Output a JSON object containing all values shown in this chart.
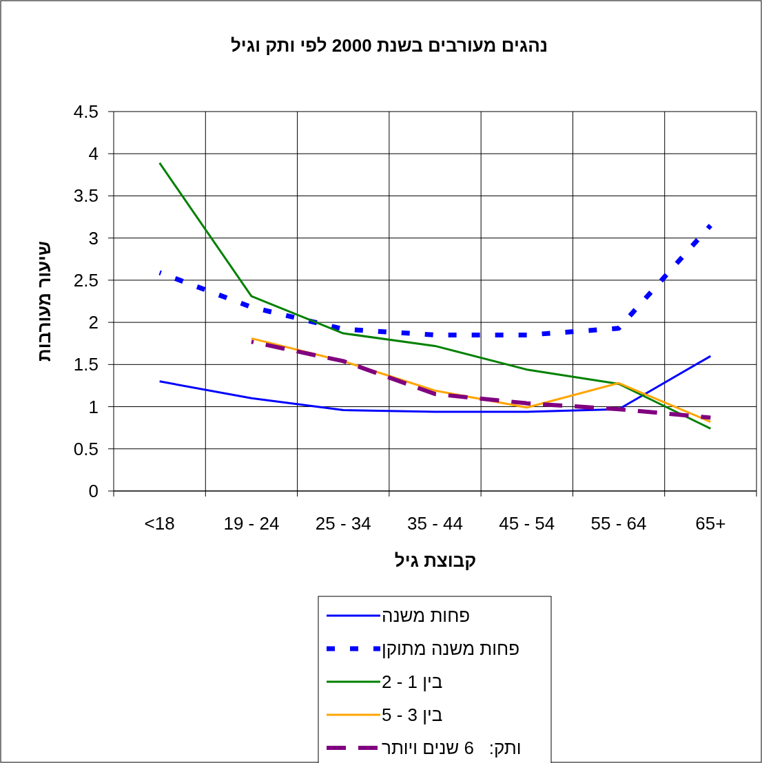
{
  "chart_data": {
    "type": "line",
    "title": "נהגים מעורבים בשנת 2000 לפי ותק וגיל",
    "xlabel": "קבוצת גיל",
    "ylabel": "שיעור מעורבות",
    "categories": [
      "<18",
      "19 - 24",
      "25 - 34",
      "35 - 44",
      "45 - 54",
      "55 - 64",
      "65+"
    ],
    "ylim": [
      0,
      4.5
    ],
    "yticks": [
      0,
      0.5,
      1,
      1.5,
      2,
      2.5,
      3,
      3.5,
      4,
      4.5
    ],
    "grid": true,
    "legend": "bottom",
    "marker": "none",
    "series": [
      {
        "name": "פחות משנה",
        "color": "#0000ff",
        "line_style": "solid",
        "values": [
          1.3,
          1.1,
          0.96,
          0.94,
          0.94,
          0.97,
          1.6
        ]
      },
      {
        "name": "פחות משנה מתוקן",
        "color": "#0000ff",
        "line_style": "dotted",
        "values": [
          2.59,
          2.18,
          1.92,
          1.85,
          1.85,
          1.93,
          3.15
        ]
      },
      {
        "name": "בין 1 - 2",
        "color": "#008000",
        "line_style": "solid",
        "values": [
          3.89,
          2.31,
          1.87,
          1.72,
          1.44,
          1.27,
          0.74
        ]
      },
      {
        "name": "בין 3 - 5",
        "color": "#ffa500",
        "line_style": "solid",
        "values": [
          null,
          1.81,
          1.54,
          1.19,
          0.99,
          1.28,
          0.82
        ]
      },
      {
        "name": "ותק:   6 שנים ויותר",
        "color": "#800080",
        "line_style": "dashed",
        "values": [
          null,
          1.77,
          1.54,
          1.15,
          1.04,
          0.97,
          0.87
        ]
      }
    ]
  }
}
